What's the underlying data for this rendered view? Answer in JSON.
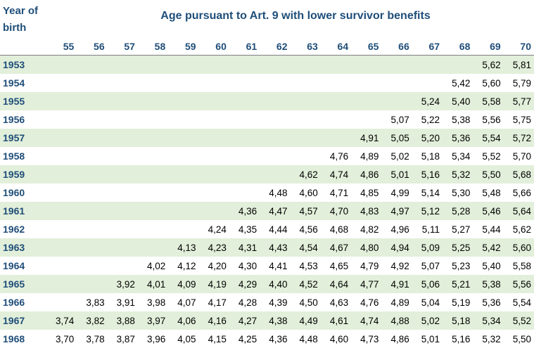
{
  "header": {
    "year_of_birth": "Year of birth",
    "title": "Age pursuant to Art. 9 with lower survivor benefits"
  },
  "ages": [
    "55",
    "56",
    "57",
    "58",
    "59",
    "60",
    "61",
    "62",
    "63",
    "64",
    "65",
    "66",
    "67",
    "68",
    "69",
    "70"
  ],
  "rows": [
    {
      "year": "1953",
      "values": [
        "",
        "",
        "",
        "",
        "",
        "",
        "",
        "",
        "",
        "",
        "",
        "",
        "",
        "",
        "5,62",
        "5,81"
      ]
    },
    {
      "year": "1954",
      "values": [
        "",
        "",
        "",
        "",
        "",
        "",
        "",
        "",
        "",
        "",
        "",
        "",
        "",
        "5,42",
        "5,60",
        "5,79"
      ]
    },
    {
      "year": "1955",
      "values": [
        "",
        "",
        "",
        "",
        "",
        "",
        "",
        "",
        "",
        "",
        "",
        "",
        "5,24",
        "5,40",
        "5,58",
        "5,77"
      ]
    },
    {
      "year": "1956",
      "values": [
        "",
        "",
        "",
        "",
        "",
        "",
        "",
        "",
        "",
        "",
        "",
        "5,07",
        "5,22",
        "5,38",
        "5,56",
        "5,75"
      ]
    },
    {
      "year": "1957",
      "values": [
        "",
        "",
        "",
        "",
        "",
        "",
        "",
        "",
        "",
        "",
        "4,91",
        "5,05",
        "5,20",
        "5,36",
        "5,54",
        "5,72"
      ]
    },
    {
      "year": "1958",
      "values": [
        "",
        "",
        "",
        "",
        "",
        "",
        "",
        "",
        "",
        "4,76",
        "4,89",
        "5,02",
        "5,18",
        "5,34",
        "5,52",
        "5,70"
      ]
    },
    {
      "year": "1959",
      "values": [
        "",
        "",
        "",
        "",
        "",
        "",
        "",
        "",
        "4,62",
        "4,74",
        "4,86",
        "5,01",
        "5,16",
        "5,32",
        "5,50",
        "5,68"
      ]
    },
    {
      "year": "1960",
      "values": [
        "",
        "",
        "",
        "",
        "",
        "",
        "",
        "4,48",
        "4,60",
        "4,71",
        "4,85",
        "4,99",
        "5,14",
        "5,30",
        "5,48",
        "5,66"
      ]
    },
    {
      "year": "1961",
      "values": [
        "",
        "",
        "",
        "",
        "",
        "",
        "4,36",
        "4,47",
        "4,57",
        "4,70",
        "4,83",
        "4,97",
        "5,12",
        "5,28",
        "5,46",
        "5,64"
      ]
    },
    {
      "year": "1962",
      "values": [
        "",
        "",
        "",
        "",
        "",
        "4,24",
        "4,35",
        "4,44",
        "4,56",
        "4,68",
        "4,82",
        "4,96",
        "5,11",
        "5,27",
        "5,44",
        "5,62"
      ]
    },
    {
      "year": "1963",
      "values": [
        "",
        "",
        "",
        "",
        "4,13",
        "4,23",
        "4,31",
        "4,43",
        "4,54",
        "4,67",
        "4,80",
        "4,94",
        "5,09",
        "5,25",
        "5,42",
        "5,60"
      ]
    },
    {
      "year": "1964",
      "values": [
        "",
        "",
        "",
        "4,02",
        "4,12",
        "4,20",
        "4,30",
        "4,41",
        "4,53",
        "4,65",
        "4,79",
        "4,92",
        "5,07",
        "5,23",
        "5,40",
        "5,58"
      ]
    },
    {
      "year": "1965",
      "values": [
        "",
        "",
        "3,92",
        "4,01",
        "4,09",
        "4,19",
        "4,29",
        "4,40",
        "4,52",
        "4,64",
        "4,77",
        "4,91",
        "5,06",
        "5,21",
        "5,38",
        "5,56"
      ]
    },
    {
      "year": "1966",
      "values": [
        "",
        "3,83",
        "3,91",
        "3,98",
        "4,07",
        "4,17",
        "4,28",
        "4,39",
        "4,50",
        "4,63",
        "4,76",
        "4,89",
        "5,04",
        "5,19",
        "5,36",
        "5,54"
      ]
    },
    {
      "year": "1967",
      "values": [
        "3,74",
        "3,82",
        "3,88",
        "3,97",
        "4,06",
        "4,16",
        "4,27",
        "4,38",
        "4,49",
        "4,61",
        "4,74",
        "4,88",
        "5,02",
        "5,18",
        "5,34",
        "5,52"
      ]
    },
    {
      "year": "1968",
      "values": [
        "3,70",
        "3,78",
        "3,87",
        "3,96",
        "4,05",
        "4,15",
        "4,25",
        "4,36",
        "4,48",
        "4,60",
        "4,73",
        "4,86",
        "5,01",
        "5,16",
        "5,32",
        "5,50"
      ]
    }
  ],
  "colors": {
    "header_text": "#1f4e79",
    "shade": "#e2efda"
  }
}
